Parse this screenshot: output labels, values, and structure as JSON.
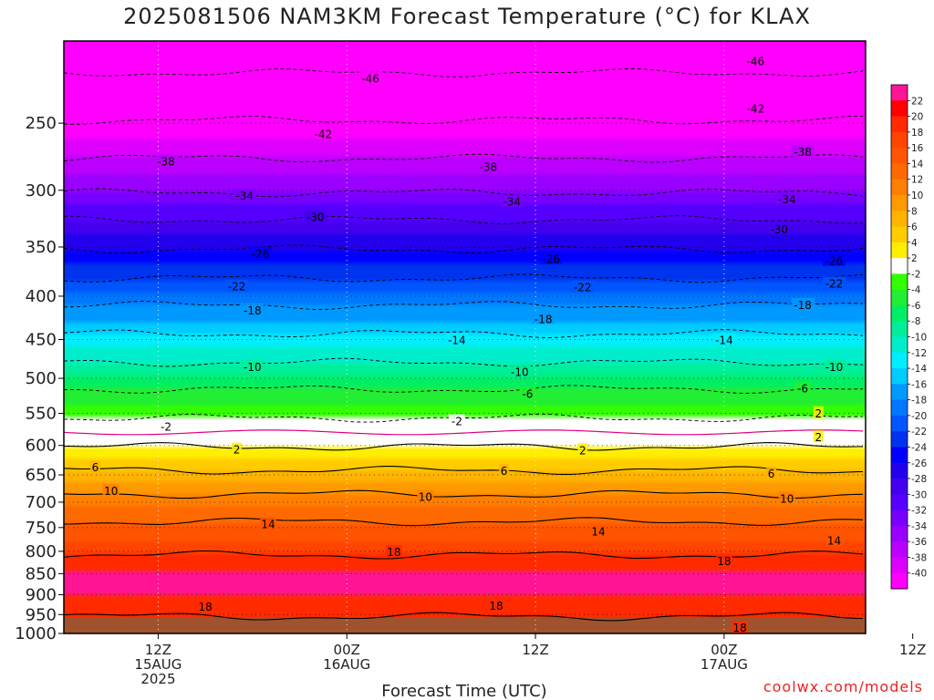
{
  "chart_data": {
    "type": "heatmap",
    "title": "2025081506 NAM3KM Forecast Temperature (°C) for KLAX",
    "xlabel": "Forecast Time (UTC)",
    "ylabel": "",
    "y_axis": {
      "scale": "pressure (log), inverted",
      "range": [
        1000,
        200
      ],
      "ticks": [
        250,
        300,
        350,
        400,
        450,
        500,
        550,
        600,
        650,
        700,
        750,
        800,
        850,
        900,
        950,
        1000
      ]
    },
    "x_axis": {
      "range_hours": [
        -6,
        45
      ],
      "ticks": [
        {
          "hour": 0,
          "line1": "12Z",
          "line2": "15AUG",
          "line3": "2025"
        },
        {
          "hour": 12,
          "line1": "00Z",
          "line2": "16AUG",
          "line3": ""
        },
        {
          "hour": 24,
          "line1": "12Z",
          "line2": "",
          "line3": ""
        },
        {
          "hour": 36,
          "line1": "00Z",
          "line2": "17AUG",
          "line3": ""
        },
        {
          "hour": 48,
          "line1": "12Z",
          "line2": "",
          "line3": ""
        }
      ]
    },
    "grid": "dotted",
    "legend": {
      "placement": "right",
      "labels": [
        "22",
        "20",
        "18",
        "16",
        "14",
        "12",
        "10",
        "8",
        "6",
        "4",
        "2",
        "-2",
        "-4",
        "-6",
        "-8",
        "-10",
        "-12",
        "-14",
        "-16",
        "-18",
        "-20",
        "-22",
        "-24",
        "-26",
        "-28",
        "-30",
        "-32",
        "-34",
        "-36",
        "-38",
        "-40"
      ],
      "colors": [
        "#ff1493",
        "#ff0000",
        "#ff2a00",
        "#ff4400",
        "#ff5500",
        "#ff6a00",
        "#ff7f00",
        "#ff9900",
        "#ffb300",
        "#ffcc00",
        "#ffee00",
        "#ffffff",
        "#33ff00",
        "#22ee33",
        "#00ee66",
        "#00ee99",
        "#00eecc",
        "#00eeff",
        "#00ccff",
        "#0099ff",
        "#0077ff",
        "#0055ff",
        "#0033ee",
        "#0000ff",
        "#2200ee",
        "#4400ee",
        "#5500ff",
        "#7700ff",
        "#9900ff",
        "#bb00ff",
        "#dd00ff",
        "#ff00ff"
      ]
    },
    "isotherms": [
      {
        "value": -46,
        "pressure": 218
      },
      {
        "value": -42,
        "pressure": 248
      },
      {
        "value": -38,
        "pressure": 275
      },
      {
        "value": -34,
        "pressure": 302
      },
      {
        "value": -30,
        "pressure": 325
      },
      {
        "value": -26,
        "pressure": 352
      },
      {
        "value": -22,
        "pressure": 381
      },
      {
        "value": -18,
        "pressure": 410
      },
      {
        "value": -14,
        "pressure": 443
      },
      {
        "value": -10,
        "pressure": 479
      },
      {
        "value": -6,
        "pressure": 515
      },
      {
        "value": -2,
        "pressure": 557
      },
      {
        "value": 2,
        "pressure": 602
      },
      {
        "value": 6,
        "pressure": 642
      },
      {
        "value": 10,
        "pressure": 685
      },
      {
        "value": 14,
        "pressure": 738
      },
      {
        "value": 18,
        "pressure": 808
      },
      {
        "value": 18,
        "pressure": 955
      }
    ],
    "contour_labels": [
      {
        "text": "-46",
        "hour": 13.5,
        "pressure": 221
      },
      {
        "text": "-46",
        "hour": 38,
        "pressure": 211
      },
      {
        "text": "-42",
        "hour": 10.5,
        "pressure": 257
      },
      {
        "text": "-42",
        "hour": 38,
        "pressure": 240
      },
      {
        "text": "-38",
        "hour": 0.5,
        "pressure": 277
      },
      {
        "text": "-38",
        "hour": 21,
        "pressure": 281
      },
      {
        "text": "-38",
        "hour": 41,
        "pressure": 270
      },
      {
        "text": "-34",
        "hour": 5.5,
        "pressure": 304
      },
      {
        "text": "-34",
        "hour": 22.5,
        "pressure": 309
      },
      {
        "text": "-34",
        "hour": 40,
        "pressure": 307
      },
      {
        "text": "-30",
        "hour": 10,
        "pressure": 322
      },
      {
        "text": "-30",
        "hour": 39.5,
        "pressure": 333
      },
      {
        "text": "-26",
        "hour": 6.5,
        "pressure": 356
      },
      {
        "text": "-26",
        "hour": 25,
        "pressure": 361
      },
      {
        "text": "-26",
        "hour": 43,
        "pressure": 363
      },
      {
        "text": "-22",
        "hour": 5,
        "pressure": 389
      },
      {
        "text": "-22",
        "hour": 27,
        "pressure": 390
      },
      {
        "text": "-22",
        "hour": 43,
        "pressure": 386
      },
      {
        "text": "-18",
        "hour": 6,
        "pressure": 415
      },
      {
        "text": "-18",
        "hour": 24.5,
        "pressure": 425
      },
      {
        "text": "-18",
        "hour": 41,
        "pressure": 409
      },
      {
        "text": "-14",
        "hour": 19,
        "pressure": 450
      },
      {
        "text": "-14",
        "hour": 36,
        "pressure": 450
      },
      {
        "text": "-10",
        "hour": 6,
        "pressure": 484
      },
      {
        "text": "-10",
        "hour": 23,
        "pressure": 491
      },
      {
        "text": "-10",
        "hour": 43,
        "pressure": 484
      },
      {
        "text": "-6",
        "hour": 23.5,
        "pressure": 521
      },
      {
        "text": "-6",
        "hour": 41,
        "pressure": 513
      },
      {
        "text": "-2",
        "hour": 0.5,
        "pressure": 569
      },
      {
        "text": "-2",
        "hour": 19,
        "pressure": 561
      },
      {
        "text": "2",
        "hour": 42,
        "pressure": 549
      },
      {
        "text": "2",
        "hour": 5,
        "pressure": 606
      },
      {
        "text": "2",
        "hour": 27,
        "pressure": 607
      },
      {
        "text": "2",
        "hour": 42,
        "pressure": 586
      },
      {
        "text": "6",
        "hour": -4,
        "pressure": 636
      },
      {
        "text": "6",
        "hour": 22,
        "pressure": 642
      },
      {
        "text": "6",
        "hour": 39,
        "pressure": 647
      },
      {
        "text": "10",
        "hour": -3,
        "pressure": 678
      },
      {
        "text": "10",
        "hour": 17,
        "pressure": 689
      },
      {
        "text": "10",
        "hour": 40,
        "pressure": 692
      },
      {
        "text": "14",
        "hour": 7,
        "pressure": 742
      },
      {
        "text": "14",
        "hour": 28,
        "pressure": 757
      },
      {
        "text": "14",
        "hour": 43,
        "pressure": 776
      },
      {
        "text": "18",
        "hour": 15,
        "pressure": 800
      },
      {
        "text": "18",
        "hour": 36,
        "pressure": 820
      },
      {
        "text": "18",
        "hour": 3,
        "pressure": 928
      },
      {
        "text": "18",
        "hour": 21.5,
        "pressure": 926
      },
      {
        "text": "18",
        "hour": 37,
        "pressure": 983
      }
    ]
  },
  "credit": "coolwx.com/models"
}
